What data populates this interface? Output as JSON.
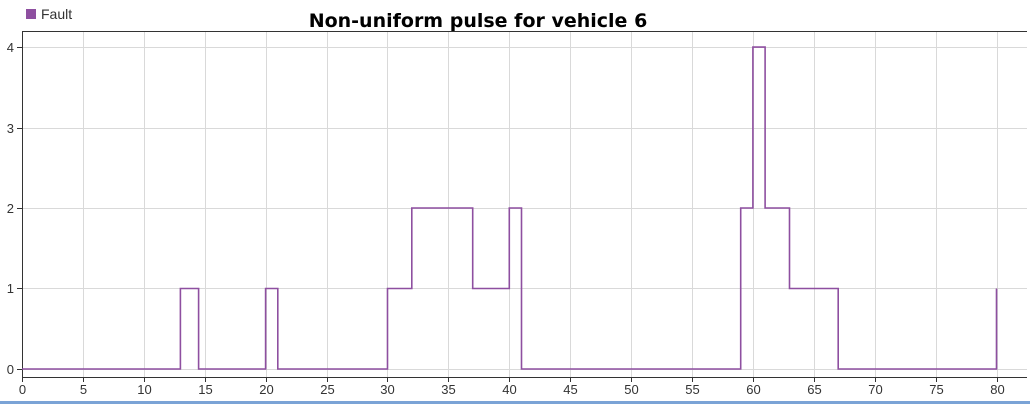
{
  "chart_data": {
    "type": "line",
    "step": true,
    "title": "Non-uniform pulse for vehicle 6",
    "xlabel": "",
    "ylabel": "",
    "xlim": [
      0,
      82.5
    ],
    "ylim": [
      -0.1,
      4.2
    ],
    "xticks": [
      0,
      5,
      10,
      15,
      20,
      25,
      30,
      35,
      40,
      45,
      50,
      55,
      60,
      65,
      70,
      75,
      80
    ],
    "yticks": [
      0,
      1,
      2,
      3,
      4
    ],
    "grid": true,
    "legend": "top-left",
    "series": [
      {
        "name": "Fault",
        "color": "#8e4fa0",
        "points": [
          [
            0,
            0
          ],
          [
            13,
            0
          ],
          [
            13,
            1
          ],
          [
            14.5,
            1
          ],
          [
            14.5,
            0
          ],
          [
            20,
            0
          ],
          [
            20,
            1
          ],
          [
            21,
            1
          ],
          [
            21,
            0
          ],
          [
            30,
            0
          ],
          [
            30,
            1
          ],
          [
            32,
            1
          ],
          [
            32,
            2
          ],
          [
            37,
            2
          ],
          [
            37,
            1
          ],
          [
            40,
            1
          ],
          [
            40,
            2
          ],
          [
            41,
            2
          ],
          [
            41,
            0
          ],
          [
            59,
            0
          ],
          [
            59,
            2
          ],
          [
            60,
            2
          ],
          [
            60,
            4
          ],
          [
            61,
            4
          ],
          [
            61,
            2
          ],
          [
            63,
            2
          ],
          [
            63,
            1
          ],
          [
            67,
            1
          ],
          [
            67,
            0
          ],
          [
            80,
            0
          ],
          [
            80,
            1
          ]
        ]
      }
    ]
  }
}
